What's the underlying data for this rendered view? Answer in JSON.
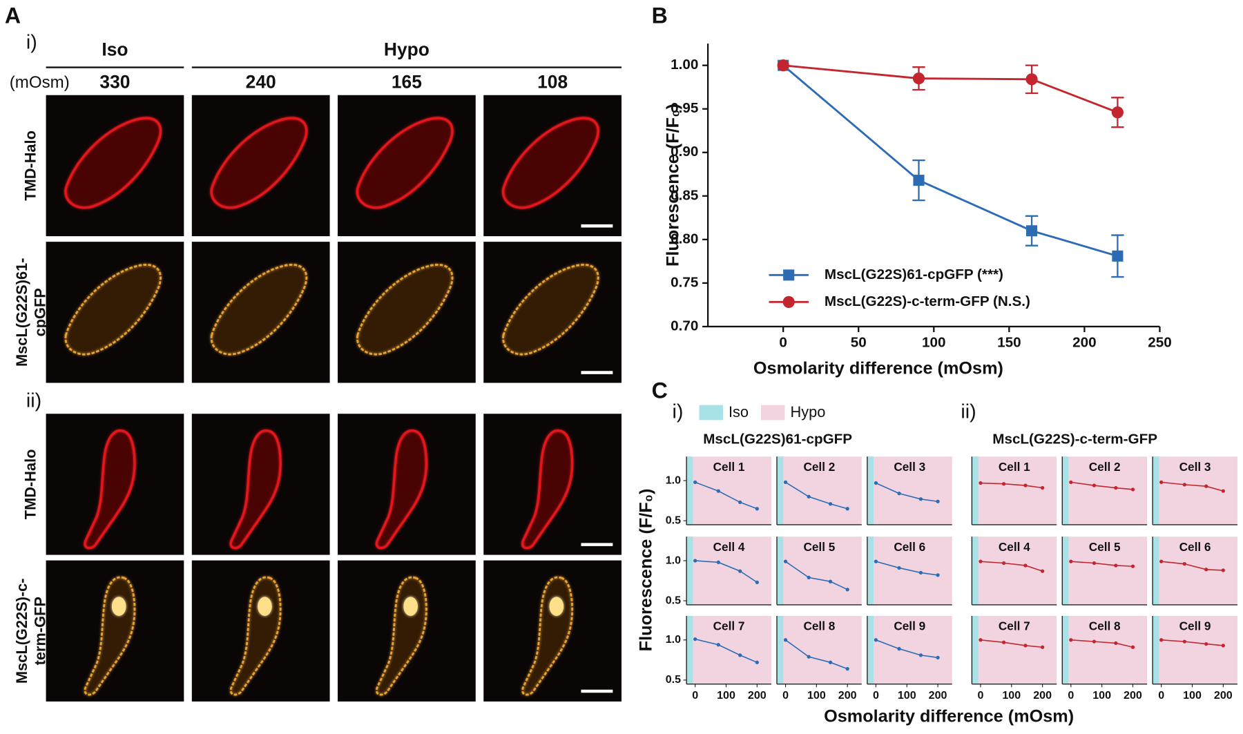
{
  "panel_a": {
    "label": "A",
    "unit": "(mOsm)",
    "groups": [
      {
        "name": "Iso"
      },
      {
        "name": "Hypo"
      }
    ],
    "columns": [
      330,
      240,
      165,
      108
    ],
    "sections": [
      {
        "label": "i)",
        "row_labels": [
          [
            "TMD-Halo"
          ],
          [
            "MscL(G22S)61-",
            "cpGFP"
          ]
        ]
      },
      {
        "label": "ii)",
        "row_labels": [
          [
            "TMD-Halo"
          ],
          [
            "MscL(G22S)-c-",
            "term-GFP"
          ]
        ]
      }
    ]
  },
  "panel_c": {
    "label": "C",
    "legend": [
      {
        "name": "Iso",
        "color": "#a9e2e6"
      },
      {
        "name": "Hypo",
        "color": "#f2d4e0"
      }
    ],
    "groups": [
      {
        "label": "i)",
        "title": "MscL(G22S)61-cpGFP"
      },
      {
        "label": "ii)",
        "title": "MscL(G22S)-c-term-GFP"
      }
    ],
    "ylabel": "Fluorescence (F/F₀)",
    "xlabel": "Osmolarity difference (mOsm)"
  },
  "chart_data": [
    {
      "type": "line",
      "panel_label": "B",
      "xlabel": "Osmolarity difference (mOsm)",
      "ylabel": "Fluorescence (F/F₀)",
      "x": [
        0,
        90,
        165,
        222
      ],
      "xlim": [
        -50,
        250
      ],
      "xticks": [
        0,
        50,
        100,
        150,
        200,
        250
      ],
      "ylim": [
        0.7,
        1.025
      ],
      "yticks": [
        {
          "value": 0.7,
          "label": "0.70"
        },
        {
          "value": 0.75,
          "label": "0.75"
        },
        {
          "value": 0.8,
          "label": "0.80"
        },
        {
          "value": 0.85,
          "label": "0.85"
        },
        {
          "value": 0.9,
          "label": "0.90"
        },
        {
          "value": 0.95,
          "label": "0.95"
        },
        {
          "value": 1.0,
          "label": "1.00"
        }
      ],
      "grid": false,
      "legend": "lower left",
      "series": [
        {
          "name": "MscL(G22S)61-cpGFP (***)",
          "color": "#2c6cb5",
          "marker": "square",
          "values": [
            1.0,
            0.868,
            0.81,
            0.781
          ],
          "errors": [
            null,
            0.023,
            0.017,
            0.024
          ]
        },
        {
          "name": "MscL(G22S)-c-term-GFP (N.S.)",
          "color": "#c3262e",
          "marker": "circle",
          "values": [
            1.0,
            0.985,
            0.984,
            0.946
          ],
          "errors": [
            null,
            0.013,
            0.016,
            0.017
          ]
        }
      ]
    },
    {
      "type": "line",
      "title": "Cell 1",
      "color": "#2c6cb5",
      "x": [
        0,
        75,
        145,
        200
      ],
      "values": [
        0.98,
        0.87,
        0.73,
        0.65
      ],
      "xlim": [
        -28,
        246
      ],
      "ylim": [
        0.45,
        1.3
      ],
      "yticks": [
        0.5,
        {
          "value": 1,
          "label": "1.0"
        }
      ]
    },
    {
      "type": "line",
      "title": "Cell 2",
      "color": "#2c6cb5",
      "x": [
        0,
        75,
        145,
        200
      ],
      "values": [
        0.98,
        0.8,
        0.71,
        0.65
      ],
      "xlim": [
        -28,
        246
      ],
      "ylim": [
        0.45,
        1.3
      ]
    },
    {
      "type": "line",
      "title": "Cell 3",
      "color": "#2c6cb5",
      "x": [
        0,
        75,
        145,
        200
      ],
      "values": [
        0.97,
        0.84,
        0.77,
        0.74
      ],
      "xlim": [
        -28,
        246
      ],
      "ylim": [
        0.45,
        1.3
      ]
    },
    {
      "type": "line",
      "title": "Cell 4",
      "color": "#2c6cb5",
      "x": [
        0,
        75,
        145,
        200
      ],
      "values": [
        1.0,
        0.98,
        0.87,
        0.73
      ],
      "xlim": [
        -28,
        246
      ],
      "ylim": [
        0.45,
        1.3
      ],
      "yticks": [
        0.5,
        {
          "value": 1,
          "label": "1.0"
        }
      ]
    },
    {
      "type": "line",
      "title": "Cell 5",
      "color": "#2c6cb5",
      "x": [
        0,
        75,
        145,
        200
      ],
      "values": [
        0.99,
        0.79,
        0.74,
        0.64
      ],
      "xlim": [
        -28,
        246
      ],
      "ylim": [
        0.45,
        1.3
      ]
    },
    {
      "type": "line",
      "title": "Cell 6",
      "color": "#2c6cb5",
      "x": [
        0,
        75,
        145,
        200
      ],
      "values": [
        0.99,
        0.91,
        0.85,
        0.82
      ],
      "xlim": [
        -28,
        246
      ],
      "ylim": [
        0.45,
        1.3
      ]
    },
    {
      "type": "line",
      "title": "Cell 7",
      "color": "#2c6cb5",
      "x": [
        0,
        75,
        145,
        200
      ],
      "values": [
        1.01,
        0.94,
        0.81,
        0.72
      ],
      "xlim": [
        -28,
        246
      ],
      "ylim": [
        0.45,
        1.3
      ],
      "yticks": [
        0.5,
        {
          "value": 1,
          "label": "1.0"
        }
      ],
      "xticks": [
        0,
        100,
        200
      ]
    },
    {
      "type": "line",
      "title": "Cell 8",
      "color": "#2c6cb5",
      "x": [
        0,
        75,
        145,
        200
      ],
      "values": [
        1.0,
        0.79,
        0.72,
        0.64
      ],
      "xlim": [
        -28,
        246
      ],
      "ylim": [
        0.45,
        1.3
      ],
      "xticks": [
        0,
        100,
        200
      ]
    },
    {
      "type": "line",
      "title": "Cell 9",
      "color": "#2c6cb5",
      "x": [
        0,
        75,
        145,
        200
      ],
      "values": [
        1.0,
        0.89,
        0.81,
        0.78
      ],
      "xlim": [
        -28,
        246
      ],
      "ylim": [
        0.45,
        1.3
      ],
      "xticks": [
        0,
        100,
        200
      ]
    },
    {
      "type": "line",
      "title": "Cell 1",
      "color": "#c3262e",
      "x": [
        0,
        75,
        145,
        200
      ],
      "values": [
        0.97,
        0.96,
        0.94,
        0.91
      ],
      "xlim": [
        -28,
        246
      ],
      "ylim": [
        0.45,
        1.3
      ]
    },
    {
      "type": "line",
      "title": "Cell 2",
      "color": "#c3262e",
      "x": [
        0,
        75,
        145,
        200
      ],
      "values": [
        0.98,
        0.94,
        0.91,
        0.89
      ],
      "xlim": [
        -28,
        246
      ],
      "ylim": [
        0.45,
        1.3
      ]
    },
    {
      "type": "line",
      "title": "Cell 3",
      "color": "#c3262e",
      "x": [
        0,
        75,
        145,
        200
      ],
      "values": [
        0.98,
        0.95,
        0.93,
        0.87
      ],
      "xlim": [
        -28,
        246
      ],
      "ylim": [
        0.45,
        1.3
      ]
    },
    {
      "type": "line",
      "title": "Cell 4",
      "color": "#c3262e",
      "x": [
        0,
        75,
        145,
        200
      ],
      "values": [
        0.99,
        0.97,
        0.94,
        0.87
      ],
      "xlim": [
        -28,
        246
      ],
      "ylim": [
        0.45,
        1.3
      ]
    },
    {
      "type": "line",
      "title": "Cell 5",
      "color": "#c3262e",
      "x": [
        0,
        75,
        145,
        200
      ],
      "values": [
        0.99,
        0.97,
        0.94,
        0.93
      ],
      "xlim": [
        -28,
        246
      ],
      "ylim": [
        0.45,
        1.3
      ]
    },
    {
      "type": "line",
      "title": "Cell 6",
      "color": "#c3262e",
      "x": [
        0,
        75,
        145,
        200
      ],
      "values": [
        0.99,
        0.96,
        0.89,
        0.88
      ],
      "xlim": [
        -28,
        246
      ],
      "ylim": [
        0.45,
        1.3
      ]
    },
    {
      "type": "line",
      "title": "Cell 7",
      "color": "#c3262e",
      "x": [
        0,
        75,
        145,
        200
      ],
      "values": [
        1.0,
        0.97,
        0.93,
        0.91
      ],
      "xlim": [
        -28,
        246
      ],
      "ylim": [
        0.45,
        1.3
      ],
      "xticks": [
        0,
        100,
        200
      ]
    },
    {
      "type": "line",
      "title": "Cell 8",
      "color": "#c3262e",
      "x": [
        0,
        75,
        145,
        200
      ],
      "values": [
        1.0,
        0.98,
        0.96,
        0.91
      ],
      "xlim": [
        -28,
        246
      ],
      "ylim": [
        0.45,
        1.3
      ],
      "xticks": [
        0,
        100,
        200
      ]
    },
    {
      "type": "line",
      "title": "Cell 9",
      "color": "#c3262e",
      "x": [
        0,
        75,
        145,
        200
      ],
      "values": [
        1.0,
        0.98,
        0.95,
        0.93
      ],
      "xlim": [
        -28,
        246
      ],
      "ylim": [
        0.45,
        1.3
      ],
      "xticks": [
        0,
        100,
        200
      ]
    }
  ]
}
